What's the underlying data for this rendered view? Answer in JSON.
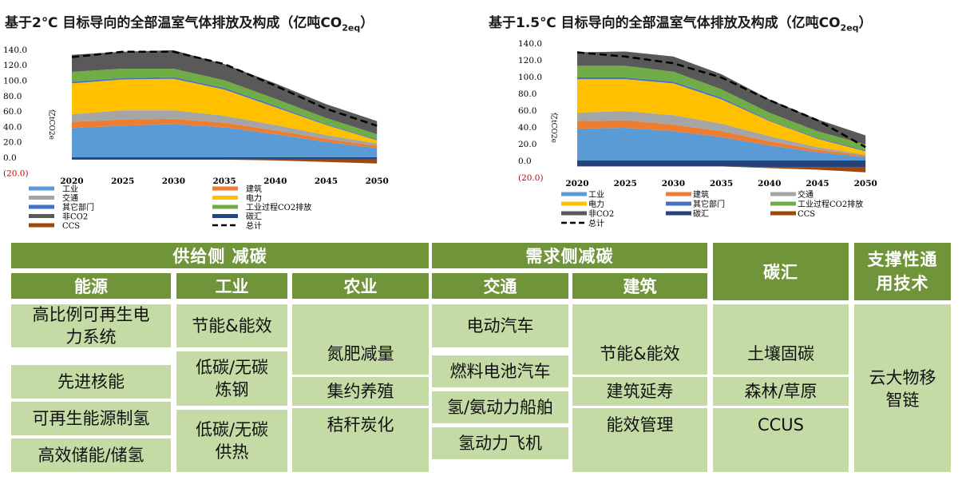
{
  "charts": {
    "left": {
      "title_main": "基于2℃ 目标导向的全部温室气体排放及构成（亿吨CO",
      "title_sub": "2eq",
      "title_end": "）"
    },
    "right": {
      "title_main": "基于1.5℃ 目标导向的全部温室气体排放及构成（亿吨CO",
      "title_sub": "2eq",
      "title_end": "）"
    }
  },
  "chart_data": [
    {
      "type": "area",
      "title": "基于2℃ 目标导向的全部温室气体排放及构成（亿吨CO2eq）",
      "ylabel": "亿tCO2e",
      "x": [
        "2020",
        "2025",
        "2030",
        "2035",
        "2040",
        "2045",
        "2050"
      ],
      "ylim": [
        -20,
        140
      ],
      "yticks": [
        "(20.0)",
        "0.0",
        "20.0",
        "40.0",
        "60.0",
        "80.0",
        "100.0",
        "120.0",
        "140.0"
      ],
      "colors": {
        "工业": "#5b9bd5",
        "建筑": "#ed7d31",
        "交通": "#a5a5a5",
        "电力": "#ffc000",
        "其它部门": "#4472c4",
        "工业过程CO2排放": "#70ad47",
        "非CO2": "#595959",
        "碳汇": "#264478",
        "CCS": "#9e480e",
        "总计": "#000000"
      },
      "series": [
        {
          "name": "工业",
          "values": [
            38,
            41,
            43,
            39,
            30,
            20,
            12
          ]
        },
        {
          "name": "建筑",
          "values": [
            8,
            8,
            7,
            6,
            5,
            4,
            3
          ]
        },
        {
          "name": "交通",
          "values": [
            10,
            12,
            11,
            9,
            7,
            5,
            3
          ]
        },
        {
          "name": "电力",
          "values": [
            40,
            40,
            41,
            34,
            23,
            13,
            4
          ]
        },
        {
          "name": "其它部门",
          "values": [
            2,
            2,
            2,
            2,
            2,
            1,
            1
          ]
        },
        {
          "name": "工业过程CO2排放",
          "values": [
            13,
            12,
            11,
            10,
            9,
            8,
            7
          ]
        },
        {
          "name": "非CO2",
          "values": [
            22,
            22,
            24,
            21,
            20,
            18,
            17
          ]
        },
        {
          "name": "碳汇",
          "values": [
            -3,
            -3,
            -3,
            -3,
            -3,
            -3,
            -3
          ]
        },
        {
          "name": "CCS",
          "values": [
            0,
            0,
            0,
            0,
            -1,
            -3,
            -5
          ]
        },
        {
          "name": "总计",
          "values": [
            130,
            137,
            137,
            121,
            93,
            63,
            41
          ]
        }
      ]
    },
    {
      "type": "area",
      "title": "基于1.5℃ 目标导向的全部温室气体排放及构成（亿吨CO2eq）",
      "ylabel": "亿tCO2e",
      "x": [
        "2020",
        "2025",
        "2030",
        "2035",
        "2040",
        "2045",
        "2050"
      ],
      "ylim": [
        -20,
        140
      ],
      "yticks": [
        "(20.0)",
        "0.0",
        "20.0",
        "40.0",
        "60.0",
        "80.0",
        "100.0",
        "120.0",
        "140.0"
      ],
      "colors": {
        "工业": "#5b9bd5",
        "建筑": "#ed7d31",
        "交通": "#a5a5a5",
        "电力": "#ffc000",
        "其它部门": "#4472c4",
        "工业过程CO2排放": "#70ad47",
        "非CO2": "#595959",
        "碳汇": "#264478",
        "CCS": "#9e480e",
        "总计": "#000000"
      },
      "series": [
        {
          "name": "工业",
          "values": [
            38,
            39,
            35,
            28,
            18,
            10,
            4
          ]
        },
        {
          "name": "建筑",
          "values": [
            9,
            9,
            8,
            7,
            5,
            3,
            2
          ]
        },
        {
          "name": "交通",
          "values": [
            10,
            11,
            11,
            9,
            6,
            3,
            1
          ]
        },
        {
          "name": "电力",
          "values": [
            40,
            38,
            38,
            29,
            18,
            10,
            4
          ]
        },
        {
          "name": "其它部门",
          "values": [
            2,
            2,
            2,
            2,
            1,
            1,
            1
          ]
        },
        {
          "name": "工业过程CO2排放",
          "values": [
            14,
            14,
            12,
            10,
            9,
            8,
            7
          ]
        },
        {
          "name": "非CO2",
          "values": [
            16,
            17,
            18,
            18,
            16,
            14,
            11
          ]
        },
        {
          "name": "碳汇",
          "values": [
            -7,
            -7,
            -7,
            -7,
            -8,
            -8,
            -8
          ]
        },
        {
          "name": "CCS",
          "values": [
            0,
            0,
            0,
            0,
            -1,
            -3,
            -6
          ]
        },
        {
          "name": "总计",
          "values": [
            129,
            124,
            116,
            99,
            72,
            48,
            16
          ]
        }
      ]
    }
  ],
  "table": {
    "supply_header": "供给侧 减碳",
    "demand_header": "需求侧减碳",
    "carbon_sink_header": "碳汇",
    "support_header": "支撑性通用技术",
    "energy_header": "能源",
    "industry_header": "工业",
    "agriculture_header": "农业",
    "transport_header": "交通",
    "building_header": "建筑",
    "energy_items": [
      "高比例可再生电力系统",
      "先进核能",
      "可再生能源制氢",
      "高效储能/储氢"
    ],
    "industry_items": [
      "节能&能效",
      "低碳/无碳炼钢",
      "低碳/无碳供热"
    ],
    "agriculture_items": [
      "氮肥减量",
      "集约养殖",
      "秸秆炭化"
    ],
    "transport_items": [
      "电动汽车",
      "燃料电池汽车",
      "氢/氨动力船舶",
      "氢动力飞机"
    ],
    "building_items": [
      "节能&能效",
      "建筑延寿",
      "能效管理"
    ],
    "carbon_sink_items": [
      "土壤固碳",
      "森林/草原",
      "CCUS"
    ],
    "support_items": [
      "云大物移智链"
    ]
  }
}
